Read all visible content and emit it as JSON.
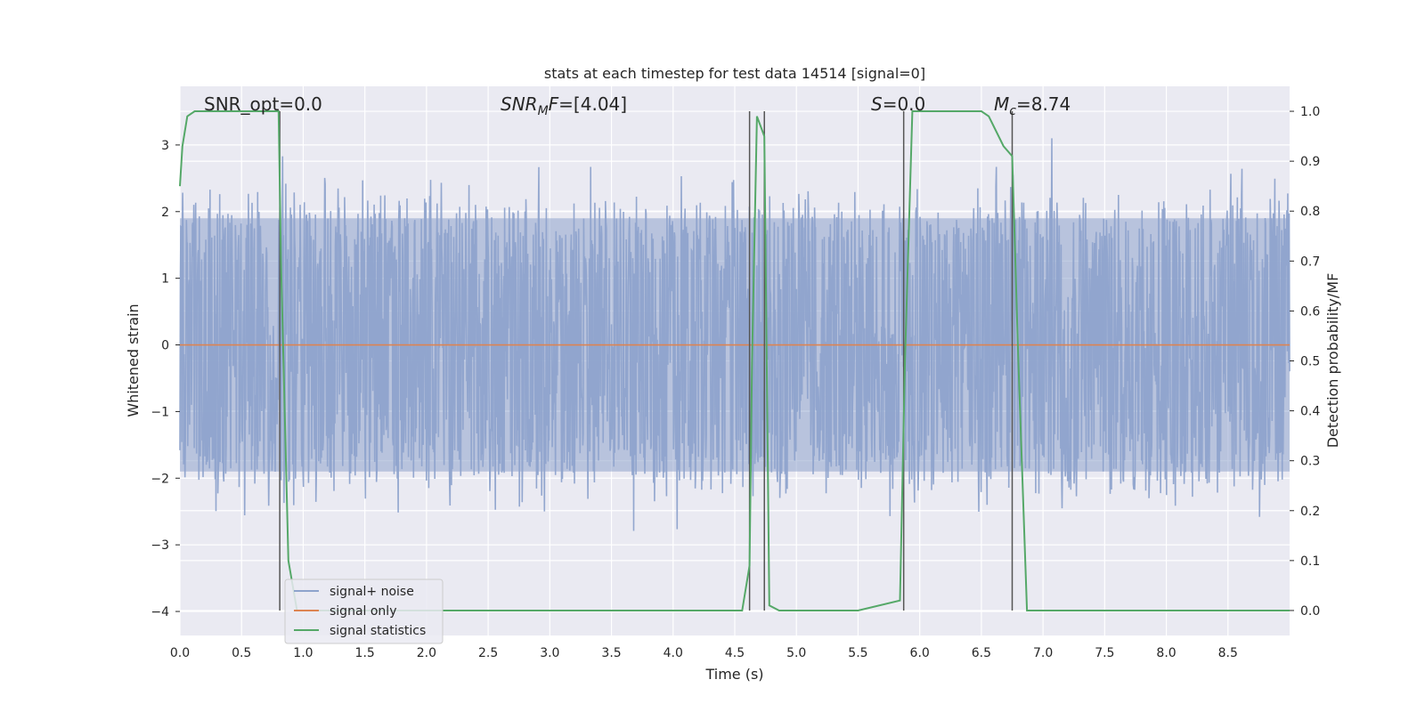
{
  "chart_data": {
    "type": "line",
    "title": "stats at each timestep for test data 14514 [signal=0]",
    "xlabel": "Time (s)",
    "ylabel": "Whitened strain",
    "ylabel_right": "Detection probability/MF",
    "xlim": [
      0.0,
      9.0
    ],
    "ylim": [
      -4.36,
      3.88
    ],
    "ylim_right": [
      -0.05,
      1.05
    ],
    "x_ticks": [
      0.0,
      0.5,
      1.0,
      1.5,
      2.0,
      2.5,
      3.0,
      3.5,
      4.0,
      4.5,
      5.0,
      5.5,
      6.0,
      6.5,
      7.0,
      7.5,
      8.0,
      8.5
    ],
    "x_tick_labels": [
      "0.0",
      "0.5",
      "1.0",
      "1.5",
      "2.0",
      "2.5",
      "3.0",
      "3.5",
      "4.0",
      "4.5",
      "5.0",
      "5.5",
      "6.0",
      "6.5",
      "7.0",
      "7.5",
      "8.0",
      "8.5"
    ],
    "y_ticks": [
      3,
      2,
      1,
      0,
      -1,
      -2,
      -3,
      -4
    ],
    "y_tick_labels": [
      "3",
      "2",
      "1",
      "0",
      "−1",
      "−2",
      "−3",
      "−4"
    ],
    "y_ticks_right": [
      1.0,
      0.9,
      0.8,
      0.7,
      0.6,
      0.5,
      0.4,
      0.3,
      0.2,
      0.1,
      0.0
    ],
    "y_tick_labels_right": [
      "1.0",
      "0.9",
      "0.8",
      "0.7",
      "0.6",
      "0.5",
      "0.4",
      "0.3",
      "0.2",
      "0.1",
      "0.0"
    ],
    "grid": true,
    "legend_placement": "lower-left",
    "annotations": [
      {
        "text": "SNR_opt=0.0",
        "x": 0.2,
        "y": 3.55
      },
      {
        "text": "SNRMF=[4.04]",
        "x": 2.6,
        "y": 3.55
      },
      {
        "text": "S=0.0",
        "x": 5.6,
        "y": 3.55
      },
      {
        "text": "Mc=8.74",
        "x": 6.6,
        "y": 3.55
      }
    ],
    "vertical_lines_x": [
      0.81,
      4.62,
      4.74,
      5.87,
      6.75
    ],
    "series": [
      {
        "name": "signal+ noise",
        "color": "#8ea3cc",
        "description_values": "noise-like whitened strain, approx. within [-3.6, 3.1]",
        "envelope_y": [
          -1.9,
          1.9
        ],
        "peak_y": [
          -3.6,
          3.1
        ]
      },
      {
        "name": "signal only",
        "color": "#dd8452",
        "x": [
          0.0,
          9.0
        ],
        "y": [
          0.0,
          0.0
        ]
      },
      {
        "name": "signal statistics",
        "color": "#55a868",
        "axis": "right",
        "x": [
          0.0,
          0.02,
          0.06,
          0.12,
          0.4,
          0.8,
          0.82,
          0.88,
          0.95,
          2.0,
          4.0,
          4.56,
          4.62,
          4.64,
          4.68,
          4.74,
          4.78,
          4.86,
          5.0,
          5.5,
          5.84,
          5.88,
          5.94,
          6.2,
          6.5,
          6.56,
          6.62,
          6.68,
          6.75,
          6.8,
          6.87,
          7.0,
          8.0,
          9.0
        ],
        "y": [
          0.85,
          0.93,
          0.99,
          1.0,
          1.0,
          1.0,
          0.7,
          0.1,
          0.0,
          0.0,
          0.0,
          0.0,
          0.09,
          0.5,
          0.99,
          0.95,
          0.01,
          0.0,
          0.0,
          0.0,
          0.02,
          0.5,
          1.0,
          1.0,
          1.0,
          0.99,
          0.96,
          0.93,
          0.91,
          0.5,
          0.0,
          0.0,
          0.0,
          0.0
        ]
      }
    ]
  }
}
